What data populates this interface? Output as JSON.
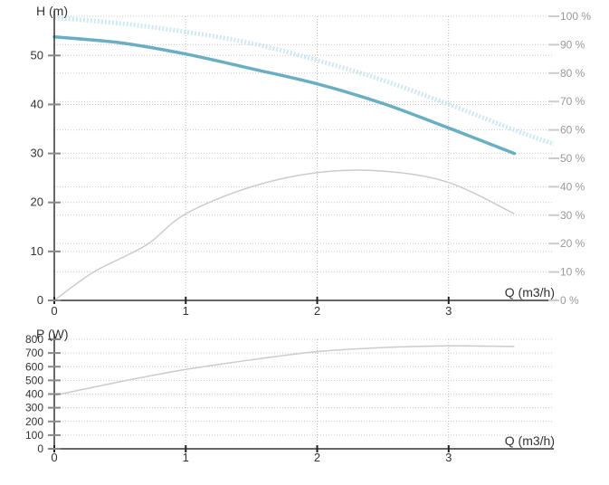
{
  "chart_data": [
    {
      "type": "line",
      "name": "head-chart",
      "ylabel": "H (m)",
      "xlabel": "Q (m3/h)",
      "xlim": [
        0,
        3.8
      ],
      "ylim": [
        0,
        58
      ],
      "x_ticks": [
        0,
        1,
        2,
        3
      ],
      "y_ticks": [
        0,
        10,
        20,
        30,
        40,
        50
      ],
      "y2lim": [
        0,
        100
      ],
      "y2_ticks": [
        {
          "value": 0,
          "label": "0 %"
        },
        {
          "value": 10,
          "label": "10 %"
        },
        {
          "value": 20,
          "label": "20 %"
        },
        {
          "value": 30,
          "label": "30 %"
        },
        {
          "value": 40,
          "label": "40 %"
        },
        {
          "value": 50,
          "label": "50 %"
        },
        {
          "value": 60,
          "label": "60 %"
        },
        {
          "value": 70,
          "label": "70 %"
        },
        {
          "value": 80,
          "label": "80 %"
        },
        {
          "value": 90,
          "label": "90 %"
        },
        {
          "value": 100,
          "label": "100 %"
        }
      ],
      "grid": true,
      "series": [
        {
          "axis": "left",
          "color": "#6aaec4",
          "style": "solid-thick",
          "points": [
            [
              0,
              53.8
            ],
            [
              0.5,
              52.6
            ],
            [
              1.0,
              50.3
            ],
            [
              1.5,
              47.3
            ],
            [
              2.0,
              44.2
            ],
            [
              2.5,
              40.2
            ],
            [
              3.0,
              35.2
            ],
            [
              3.5,
              30.0
            ]
          ]
        },
        {
          "axis": "right",
          "color": "#bfe0ec",
          "style": "light-band",
          "points": [
            [
              0,
              99.5
            ],
            [
              0.5,
              97.5
            ],
            [
              1.0,
              94.5
            ],
            [
              1.5,
              90.5
            ],
            [
              2.0,
              84.5
            ],
            [
              2.5,
              77.5
            ],
            [
              3.0,
              69.0
            ],
            [
              3.5,
              60.0
            ],
            [
              3.8,
              55.0
            ]
          ]
        },
        {
          "axis": "right",
          "color": "#cccccc",
          "style": "thin",
          "points": [
            [
              0,
              0
            ],
            [
              0.3,
              10
            ],
            [
              0.7,
              19.5
            ],
            [
              1.0,
              30.5
            ],
            [
              1.5,
              40.0
            ],
            [
              2.0,
              45.0
            ],
            [
              2.5,
              45.5
            ],
            [
              3.0,
              41.5
            ],
            [
              3.5,
              30.5
            ]
          ]
        }
      ]
    },
    {
      "type": "line",
      "name": "power-chart",
      "ylabel": "P (W)",
      "xlabel": "Q (m3/h)",
      "xlim": [
        0,
        3.8
      ],
      "ylim": [
        0,
        800
      ],
      "x_ticks": [
        0,
        1,
        2,
        3
      ],
      "y_ticks": [
        0,
        100,
        200,
        300,
        400,
        500,
        600,
        700,
        800
      ],
      "grid": true,
      "series": [
        {
          "color": "#cccccc",
          "style": "thin",
          "points": [
            [
              0,
              390
            ],
            [
              0.5,
              490
            ],
            [
              1.0,
              580
            ],
            [
              1.5,
              650
            ],
            [
              2.0,
              710
            ],
            [
              2.5,
              740
            ],
            [
              3.0,
              752
            ],
            [
              3.5,
              748
            ]
          ]
        }
      ]
    }
  ]
}
